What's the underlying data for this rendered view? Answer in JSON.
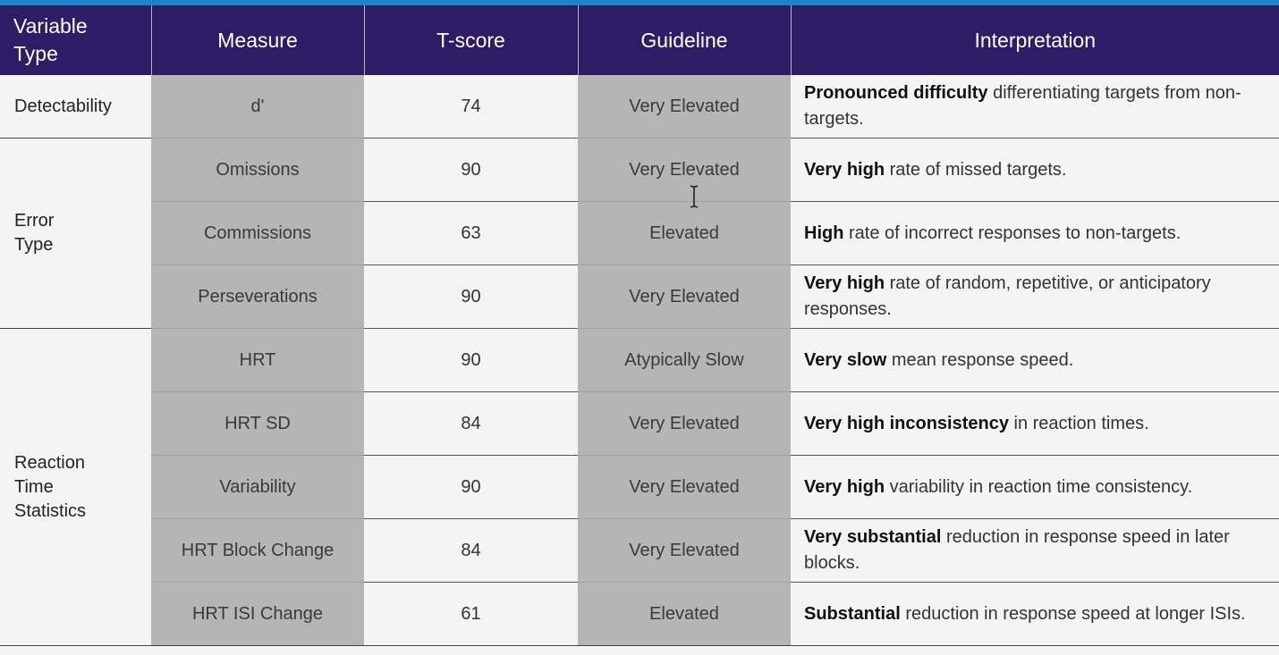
{
  "headers": {
    "variable_type": "Variable\nType",
    "measure": "Measure",
    "tscore": "T-score",
    "guideline": "Guideline",
    "interpretation": "Interpretation"
  },
  "groups": {
    "detectability": "Detectability",
    "error_type": "Error\nType",
    "reaction_time": "Reaction\nTime\nStatistics"
  },
  "rows": [
    {
      "measure": "d'",
      "tscore": "74",
      "guideline": "Very Elevated",
      "interp_bold": "Pronounced difficulty",
      "interp_rest": " differentiating targets from non-targets."
    },
    {
      "measure": "Omissions",
      "tscore": "90",
      "guideline": "Very Elevated",
      "interp_bold": "Very high",
      "interp_rest": " rate of missed targets."
    },
    {
      "measure": "Commissions",
      "tscore": "63",
      "guideline": "Elevated",
      "interp_bold": "High",
      "interp_rest": " rate of incorrect responses to non-targets."
    },
    {
      "measure": "Perseverations",
      "tscore": "90",
      "guideline": "Very Elevated",
      "interp_bold": "Very high",
      "interp_rest": " rate of random, repetitive, or anticipatory responses."
    },
    {
      "measure": "HRT",
      "tscore": "90",
      "guideline": "Atypically Slow",
      "interp_bold": "Very slow",
      "interp_rest": " mean response speed."
    },
    {
      "measure": "HRT SD",
      "tscore": "84",
      "guideline": "Very Elevated",
      "interp_bold": "Very high inconsistency",
      "interp_rest": " in reaction times."
    },
    {
      "measure": "Variability",
      "tscore": "90",
      "guideline": "Very Elevated",
      "interp_bold": "Very high",
      "interp_rest": " variability in reaction time consistency."
    },
    {
      "measure": "HRT Block Change",
      "tscore": "84",
      "guideline": "Very Elevated",
      "interp_bold": "Very substantial",
      "interp_rest": " reduction in response speed in later blocks."
    },
    {
      "measure": "HRT ISI Change",
      "tscore": "61",
      "guideline": "Elevated",
      "interp_bold": "Substantial",
      "interp_rest": " reduction in response speed at longer ISIs."
    }
  ],
  "colors": {
    "header_bg": "#2e1c66",
    "top_accent": "#1b84c8",
    "shaded_column": "#b5b5b5",
    "light_cell": "#f4f4f4"
  },
  "icons": {
    "cursor": "text-cursor-icon"
  }
}
